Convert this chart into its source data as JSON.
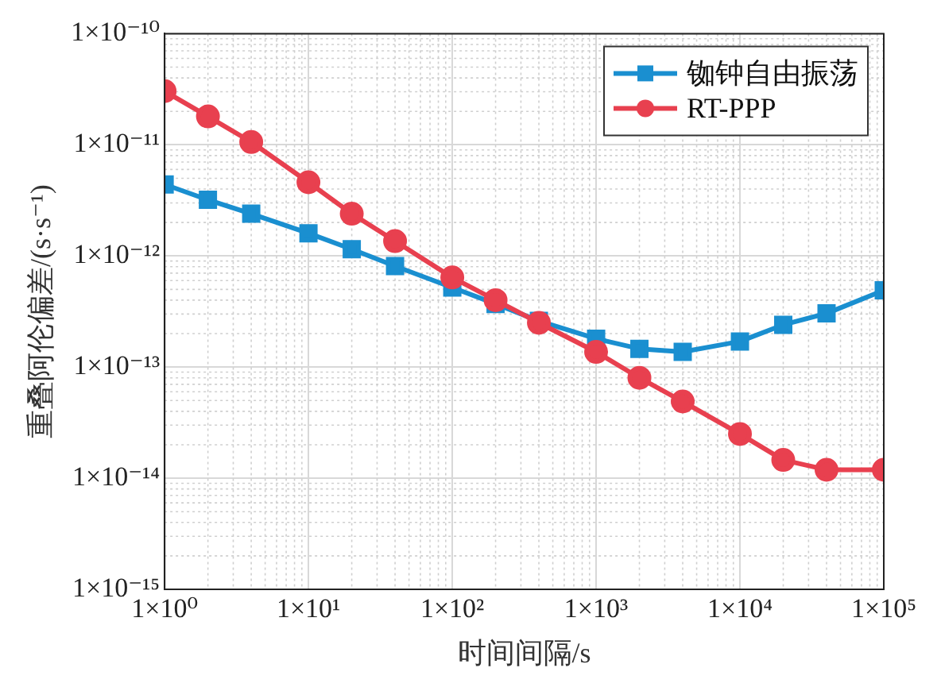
{
  "chart_data": {
    "type": "line",
    "xlabel": "时间间隔/s",
    "ylabel": "重叠阿伦偏差/(s·s⁻¹)",
    "x": [
      1,
      2,
      4,
      10,
      20,
      40,
      100,
      200,
      400,
      1000,
      2000,
      4000,
      10000,
      20000,
      40000,
      100000
    ],
    "series": [
      {
        "name": "铷钟自由振荡",
        "color": "#1a8fd0",
        "marker": "square",
        "values": [
          4.4e-12,
          3.2e-12,
          2.4e-12,
          1.6e-12,
          1.15e-12,
          8.1e-13,
          5.2e-13,
          3.7e-13,
          2.6e-13,
          1.8e-13,
          1.46e-13,
          1.37e-13,
          1.7e-13,
          2.4e-13,
          3.04e-13,
          4.9e-13
        ]
      },
      {
        "name": "RT-PPP",
        "color": "#e8404f",
        "marker": "circle",
        "values": [
          3.04e-11,
          1.8e-11,
          1.06e-11,
          4.6e-12,
          2.4e-12,
          1.36e-12,
          6.4e-13,
          4e-13,
          2.5e-13,
          1.37e-13,
          8e-14,
          4.9e-14,
          2.5e-14,
          1.46e-14,
          1.19e-14,
          1.19e-14
        ]
      }
    ],
    "log": "xy",
    "xlim": [
      1,
      100000
    ],
    "ylim": [
      1e-15,
      1e-10
    ],
    "xticks": [
      {
        "value": 1,
        "label": "1×10⁰"
      },
      {
        "value": 10,
        "label": "1×10¹"
      },
      {
        "value": 100,
        "label": "1×10²"
      },
      {
        "value": 1000,
        "label": "1×10³"
      },
      {
        "value": 10000,
        "label": "1×10⁴"
      },
      {
        "value": 100000,
        "label": "1×10⁵"
      }
    ],
    "yticks": [
      {
        "value": 1e-15,
        "label": "1×10⁻¹⁵"
      },
      {
        "value": 1e-14,
        "label": "1×10⁻¹⁴"
      },
      {
        "value": 1e-13,
        "label": "1×10⁻¹³"
      },
      {
        "value": 1e-12,
        "label": "1×10⁻¹²"
      },
      {
        "value": 1e-11,
        "label": "1×10⁻¹¹"
      },
      {
        "value": 1e-10,
        "label": "1×10⁻¹⁰"
      }
    ],
    "grid": true,
    "legend": "top right",
    "line_style": "solid"
  }
}
